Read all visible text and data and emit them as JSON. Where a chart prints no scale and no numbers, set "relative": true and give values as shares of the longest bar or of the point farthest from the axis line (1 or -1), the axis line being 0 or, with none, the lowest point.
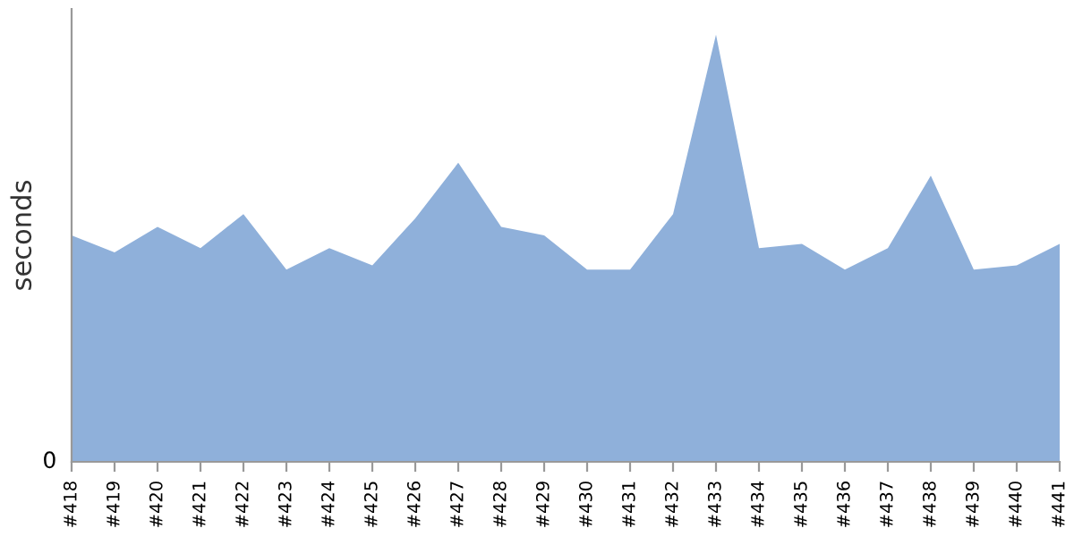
{
  "chart_data": {
    "type": "area",
    "ylabel": "seconds",
    "relative": true,
    "categories": [
      "#418",
      "#419",
      "#420",
      "#421",
      "#422",
      "#423",
      "#424",
      "#425",
      "#426",
      "#427",
      "#428",
      "#429",
      "#430",
      "#431",
      "#432",
      "#433",
      "#434",
      "#435",
      "#436",
      "#437",
      "#438",
      "#439",
      "#440",
      "#441"
    ],
    "series": [
      {
        "color": "#8fb0da",
        "values": [
          0.53,
          0.49,
          0.55,
          0.5,
          0.58,
          0.45,
          0.5,
          0.46,
          0.57,
          0.7,
          0.55,
          0.53,
          0.45,
          0.45,
          0.58,
          1,
          0.5,
          0.51,
          0.45,
          0.5,
          0.67,
          0.45,
          0.46,
          0.51
        ]
      }
    ],
    "annotations": [
      "0"
    ],
    "grid": false,
    "legend": false
  }
}
